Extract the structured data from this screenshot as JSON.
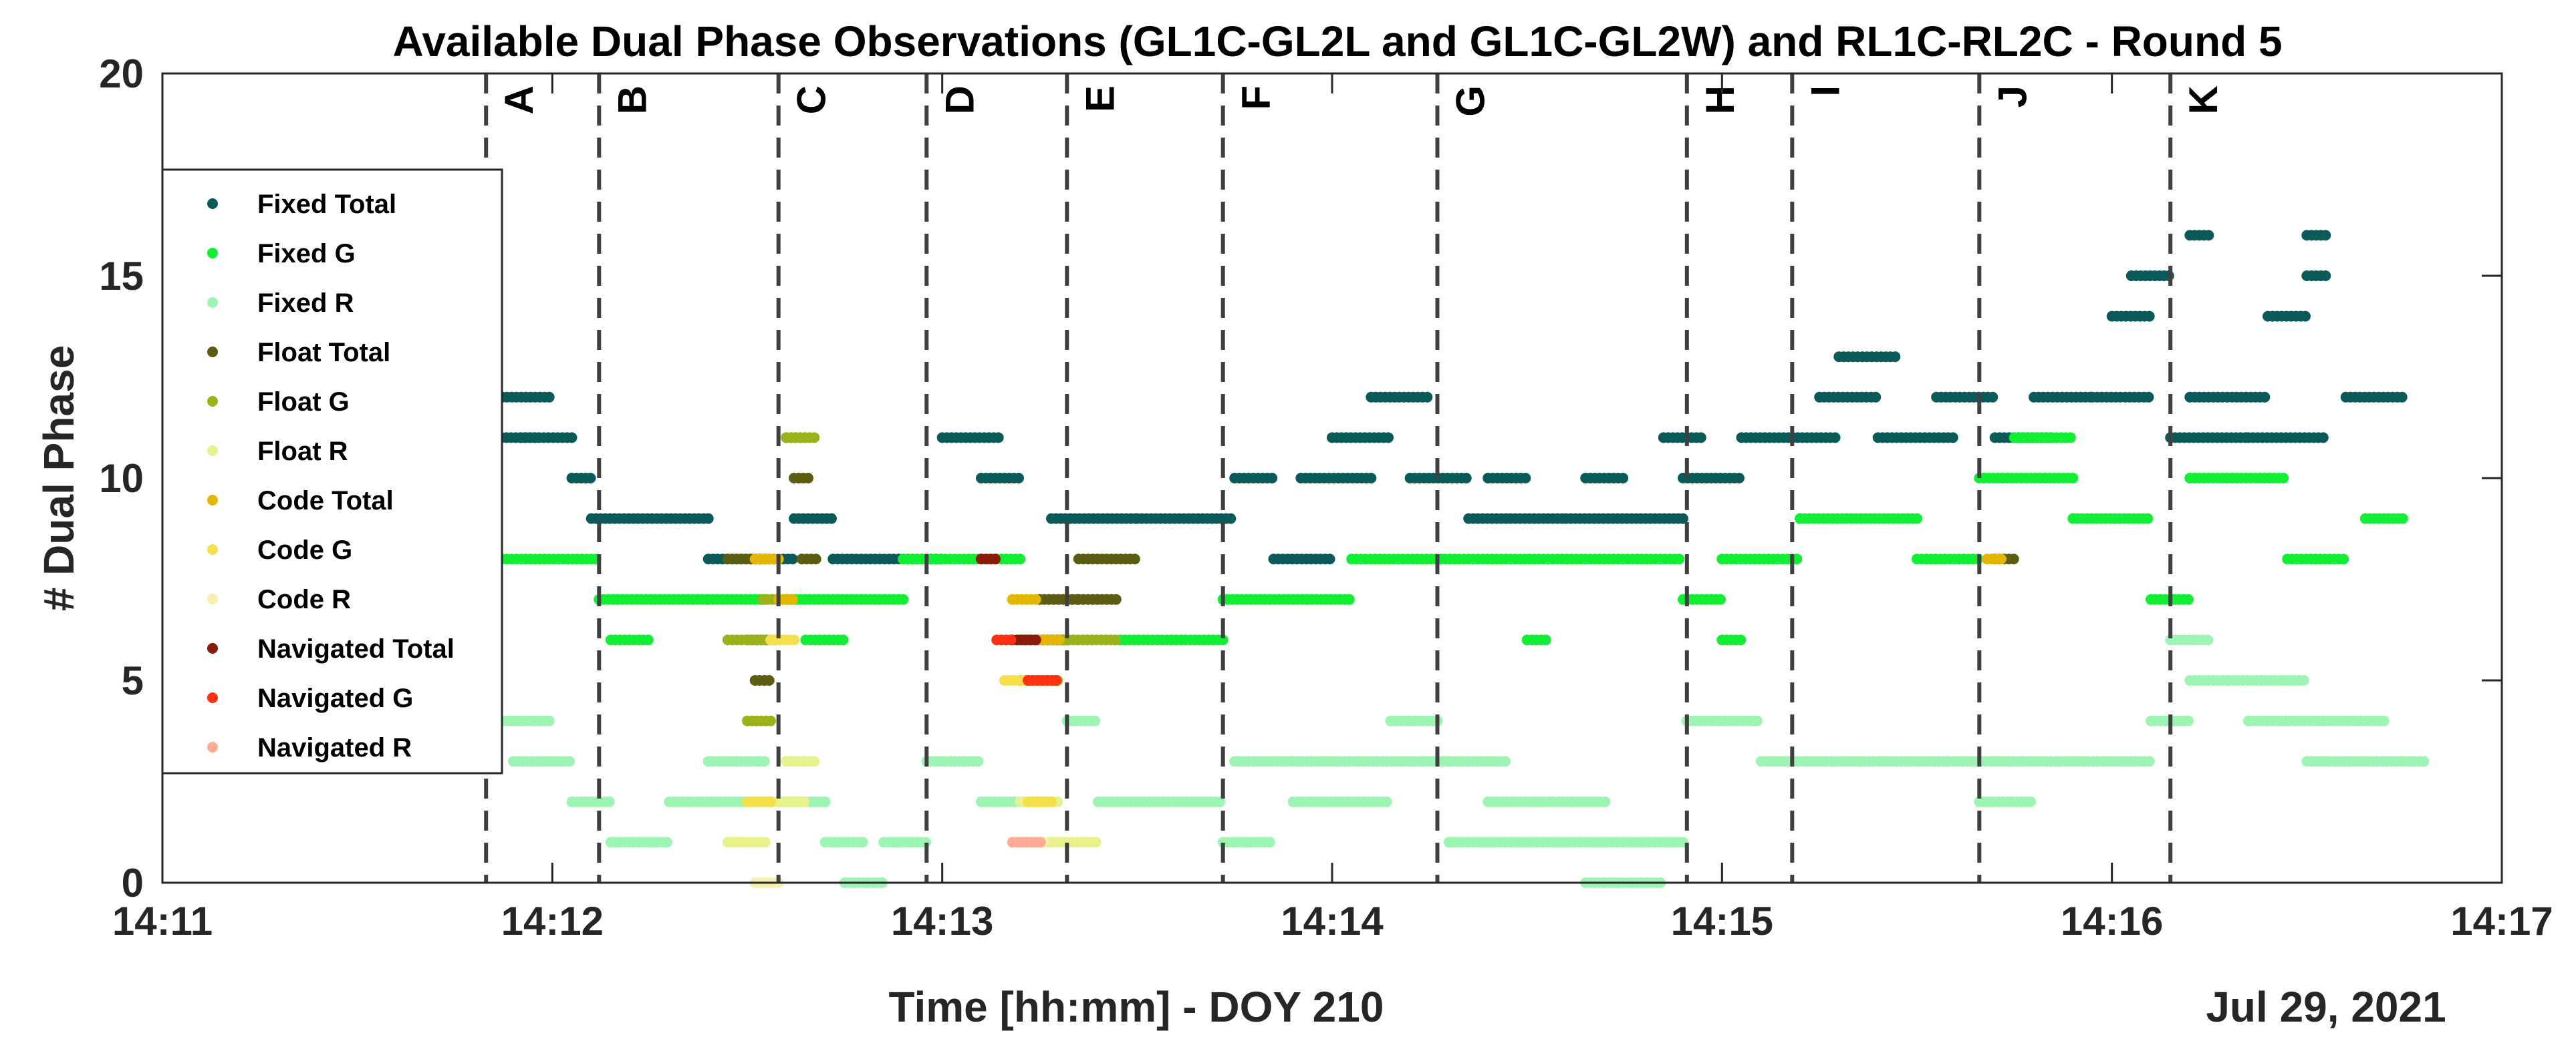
{
  "chart_data": {
    "type": "scatter",
    "title": "Available Dual Phase Observations (GL1C-GL2L and GL1C-GL2W) and RL1C-RL2C - Round 5",
    "xlabel": "Time [hh:mm] - DOY 210",
    "ylabel": "# Dual Phase",
    "date_label": "Jul 29, 2021",
    "xlim_minutes": [
      0,
      6
    ],
    "ylim": [
      0,
      20
    ],
    "x_ticks": [
      {
        "value": 0,
        "label": "14:11"
      },
      {
        "value": 1,
        "label": "14:12"
      },
      {
        "value": 2,
        "label": "14:13"
      },
      {
        "value": 3,
        "label": "14:14"
      },
      {
        "value": 4,
        "label": "14:15"
      },
      {
        "value": 5,
        "label": "14:16"
      },
      {
        "value": 6,
        "label": "14:17"
      }
    ],
    "y_ticks": [
      {
        "value": 0,
        "label": "0"
      },
      {
        "value": 5,
        "label": "5"
      },
      {
        "value": 10,
        "label": "10"
      },
      {
        "value": 15,
        "label": "15"
      },
      {
        "value": 20,
        "label": "20"
      }
    ],
    "legend_position": "left",
    "segment_lines": [
      {
        "x": 0.83,
        "label": "A"
      },
      {
        "x": 1.12,
        "label": "B"
      },
      {
        "x": 1.58,
        "label": "C"
      },
      {
        "x": 1.96,
        "label": "D"
      },
      {
        "x": 2.32,
        "label": "E"
      },
      {
        "x": 2.72,
        "label": "F"
      },
      {
        "x": 3.27,
        "label": "G"
      },
      {
        "x": 3.91,
        "label": "H"
      },
      {
        "x": 4.18,
        "label": "I"
      },
      {
        "x": 4.66,
        "label": "J"
      },
      {
        "x": 5.15,
        "label": "K"
      }
    ],
    "series": [
      {
        "name": "Fixed Total",
        "color": "#0b5a5a",
        "runs": [
          [
            0.8,
            1.0,
            12
          ],
          [
            0.87,
            1.05,
            11
          ],
          [
            1.05,
            1.1,
            10
          ],
          [
            1.1,
            1.4,
            9
          ],
          [
            1.4,
            1.62,
            8
          ],
          [
            1.62,
            1.72,
            9
          ],
          [
            1.72,
            2.0,
            8
          ],
          [
            2.0,
            2.15,
            11
          ],
          [
            2.1,
            2.2,
            10
          ],
          [
            2.28,
            2.5,
            9
          ],
          [
            2.5,
            2.75,
            9
          ],
          [
            2.75,
            2.85,
            10
          ],
          [
            2.85,
            3.0,
            8
          ],
          [
            2.92,
            3.1,
            10
          ],
          [
            3.0,
            3.15,
            11
          ],
          [
            3.1,
            3.25,
            12
          ],
          [
            3.2,
            3.35,
            10
          ],
          [
            3.35,
            3.6,
            9
          ],
          [
            3.6,
            3.9,
            9
          ],
          [
            3.4,
            3.5,
            10
          ],
          [
            3.65,
            3.75,
            10
          ],
          [
            3.85,
            3.95,
            11
          ],
          [
            3.9,
            4.05,
            10
          ],
          [
            4.05,
            4.3,
            11
          ],
          [
            4.25,
            4.4,
            12
          ],
          [
            4.4,
            4.6,
            11
          ],
          [
            4.55,
            4.7,
            12
          ],
          [
            4.7,
            4.85,
            11
          ],
          [
            4.8,
            4.95,
            12
          ],
          [
            4.95,
            5.1,
            12
          ],
          [
            5.0,
            5.1,
            14
          ],
          [
            5.05,
            5.15,
            15
          ],
          [
            5.15,
            5.35,
            11
          ],
          [
            5.35,
            5.55,
            11
          ],
          [
            5.4,
            5.5,
            14
          ],
          [
            5.5,
            5.55,
            15
          ],
          [
            5.2,
            5.4,
            12
          ],
          [
            5.6,
            5.75,
            12
          ],
          [
            0.92,
            0.96,
            11
          ],
          [
            4.3,
            4.45,
            13
          ],
          [
            5.2,
            5.25,
            16
          ],
          [
            5.5,
            5.55,
            16
          ]
        ]
      },
      {
        "name": "Fixed G",
        "color": "#11ee33",
        "runs": [
          [
            0.8,
            1.12,
            8
          ],
          [
            1.12,
            1.4,
            7
          ],
          [
            1.15,
            1.25,
            6
          ],
          [
            1.4,
            1.55,
            7
          ],
          [
            1.6,
            1.9,
            7
          ],
          [
            1.65,
            1.75,
            6
          ],
          [
            1.9,
            2.2,
            8
          ],
          [
            2.3,
            2.72,
            6
          ],
          [
            2.72,
            3.05,
            7
          ],
          [
            3.05,
            3.9,
            8
          ],
          [
            3.9,
            4.0,
            7
          ],
          [
            4.0,
            4.2,
            8
          ],
          [
            4.2,
            4.5,
            9
          ],
          [
            4.5,
            4.66,
            8
          ],
          [
            4.66,
            4.9,
            10
          ],
          [
            4.9,
            5.1,
            9
          ],
          [
            5.1,
            5.2,
            7
          ],
          [
            5.2,
            5.45,
            10
          ],
          [
            5.45,
            5.6,
            8
          ],
          [
            5.65,
            5.75,
            9
          ],
          [
            4.75,
            4.9,
            11
          ],
          [
            4.0,
            4.05,
            6
          ],
          [
            3.5,
            3.55,
            6
          ]
        ]
      },
      {
        "name": "Fixed R",
        "color": "#9ef5b3",
        "runs": [
          [
            0.8,
            1.0,
            4
          ],
          [
            0.9,
            1.05,
            3
          ],
          [
            1.05,
            1.15,
            2
          ],
          [
            1.15,
            1.3,
            1
          ],
          [
            1.3,
            1.55,
            2
          ],
          [
            1.4,
            1.55,
            3
          ],
          [
            1.58,
            1.7,
            2
          ],
          [
            1.7,
            1.8,
            1
          ],
          [
            1.75,
            1.85,
            0
          ],
          [
            1.85,
            1.96,
            1
          ],
          [
            1.96,
            2.1,
            3
          ],
          [
            2.1,
            2.25,
            2
          ],
          [
            2.32,
            2.4,
            4
          ],
          [
            2.4,
            2.72,
            2
          ],
          [
            2.72,
            2.85,
            1
          ],
          [
            2.75,
            2.9,
            3
          ],
          [
            2.9,
            3.15,
            2
          ],
          [
            2.9,
            3.3,
            3
          ],
          [
            3.15,
            3.27,
            4
          ],
          [
            3.3,
            3.9,
            1
          ],
          [
            3.4,
            3.7,
            2
          ],
          [
            3.3,
            3.45,
            3
          ],
          [
            3.65,
            3.85,
            0
          ],
          [
            3.91,
            4.1,
            4
          ],
          [
            4.1,
            4.7,
            3
          ],
          [
            4.66,
            4.8,
            2
          ],
          [
            4.7,
            5.1,
            3
          ],
          [
            5.1,
            5.2,
            4
          ],
          [
            5.2,
            5.3,
            5
          ],
          [
            5.3,
            5.5,
            5
          ],
          [
            5.35,
            5.7,
            4
          ],
          [
            5.5,
            5.8,
            3
          ],
          [
            5.15,
            5.25,
            6
          ]
        ]
      },
      {
        "name": "Float Total",
        "color": "#5c5c12",
        "runs": [
          [
            1.45,
            1.55,
            8
          ],
          [
            1.5,
            1.58,
            6
          ],
          [
            1.52,
            1.56,
            5
          ],
          [
            1.6,
            1.65,
            11
          ],
          [
            1.62,
            1.66,
            10
          ],
          [
            1.64,
            1.68,
            8
          ],
          [
            2.2,
            2.32,
            6
          ],
          [
            2.25,
            2.35,
            7
          ],
          [
            2.35,
            2.5,
            8
          ],
          [
            2.35,
            2.45,
            7
          ],
          [
            4.7,
            4.75,
            8
          ]
        ]
      },
      {
        "name": "Float G",
        "color": "#9db21a",
        "runs": [
          [
            1.45,
            1.55,
            6
          ],
          [
            1.5,
            1.56,
            4
          ],
          [
            1.54,
            1.58,
            7
          ],
          [
            1.6,
            1.68,
            11
          ],
          [
            2.2,
            2.3,
            5
          ],
          [
            2.3,
            2.45,
            6
          ]
        ]
      },
      {
        "name": "Float R",
        "color": "#e8f28c",
        "runs": [
          [
            1.45,
            1.55,
            1
          ],
          [
            1.55,
            1.65,
            2
          ],
          [
            1.6,
            1.68,
            3
          ],
          [
            2.25,
            2.4,
            1
          ],
          [
            2.2,
            2.3,
            2
          ]
        ]
      },
      {
        "name": "Code Total",
        "color": "#e3b700",
        "runs": [
          [
            1.52,
            1.58,
            8
          ],
          [
            1.58,
            1.62,
            7
          ],
          [
            2.18,
            2.24,
            7
          ],
          [
            2.24,
            2.3,
            6
          ],
          [
            4.68,
            4.72,
            8
          ]
        ]
      },
      {
        "name": "Code G",
        "color": "#f5e04a",
        "runs": [
          [
            1.5,
            1.56,
            2
          ],
          [
            1.56,
            1.62,
            6
          ],
          [
            2.16,
            2.22,
            5
          ],
          [
            2.22,
            2.28,
            2
          ]
        ]
      },
      {
        "name": "Code R",
        "color": "#f6f0b0",
        "runs": [
          [
            1.52,
            1.58,
            0
          ],
          [
            2.2,
            2.26,
            1
          ]
        ]
      },
      {
        "name": "Navigated Total",
        "color": "#8b1a0a",
        "runs": [
          [
            2.18,
            2.24,
            6
          ],
          [
            2.1,
            2.14,
            8
          ]
        ]
      },
      {
        "name": "Navigated G",
        "color": "#ff3010",
        "runs": [
          [
            2.22,
            2.3,
            5
          ],
          [
            2.14,
            2.18,
            6
          ]
        ]
      },
      {
        "name": "Navigated R",
        "color": "#ffab96",
        "runs": [
          [
            2.18,
            2.26,
            1
          ]
        ]
      }
    ]
  }
}
